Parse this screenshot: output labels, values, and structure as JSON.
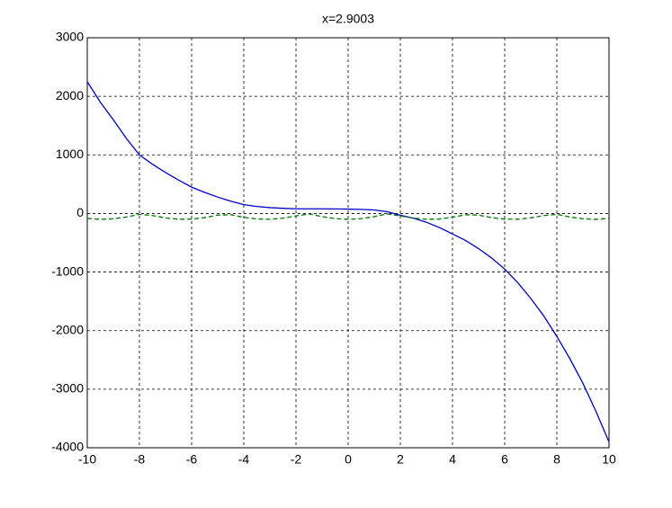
{
  "chart_data": {
    "type": "line",
    "title": "x=2.9003",
    "x": [
      -10,
      -9.5,
      -9,
      -8.5,
      -8,
      -7.5,
      -7,
      -6.5,
      -6,
      -5.5,
      -5,
      -4.5,
      -4,
      -3.5,
      -3,
      -2.5,
      -2,
      -1.5,
      -1,
      -0.5,
      0,
      0.5,
      1,
      1.5,
      2,
      2.5,
      3,
      3.5,
      4,
      4.5,
      5,
      5.5,
      6,
      6.5,
      7,
      7.5,
      8,
      8.5,
      9,
      9.5,
      10
    ],
    "series": [
      {
        "color": "#0000cc",
        "dash": false,
        "values": [
          2250,
          1900,
          1600,
          1280,
          1000,
          840,
          700,
          570,
          450,
          360,
          280,
          210,
          150,
          120,
          100,
          88,
          80,
          80,
          80,
          78,
          75,
          70,
          60,
          30,
          -30,
          -80,
          -150,
          -240,
          -350,
          -460,
          -600,
          -760,
          -950,
          -1180,
          -1450,
          -1750,
          -2100,
          -2480,
          -2900,
          -3380,
          -3900
        ]
      },
      {
        "color": "#007700",
        "dash": true,
        "values": [
          -84,
          -100,
          -91,
          -60,
          -15,
          -35,
          -75,
          -98,
          -96,
          -71,
          -28,
          -21,
          -65,
          -94,
          -99,
          -80,
          -42,
          -7,
          -54,
          -88,
          -100,
          -88,
          -54,
          -7,
          -42,
          -80,
          -99,
          -94,
          -65,
          -21,
          -28,
          -71,
          -96,
          -98,
          -75,
          -35,
          -15,
          -60,
          -91,
          -100,
          -84
        ]
      }
    ],
    "xlim": [
      -10,
      10
    ],
    "xticks": [
      -10,
      -8,
      -6,
      -4,
      -2,
      0,
      2,
      4,
      6,
      8,
      10
    ],
    "ylim": [
      -4000,
      3000
    ],
    "yticks": [
      -4000,
      -3000,
      -2000,
      -1000,
      0,
      1000,
      2000,
      3000
    ],
    "grid": true
  }
}
